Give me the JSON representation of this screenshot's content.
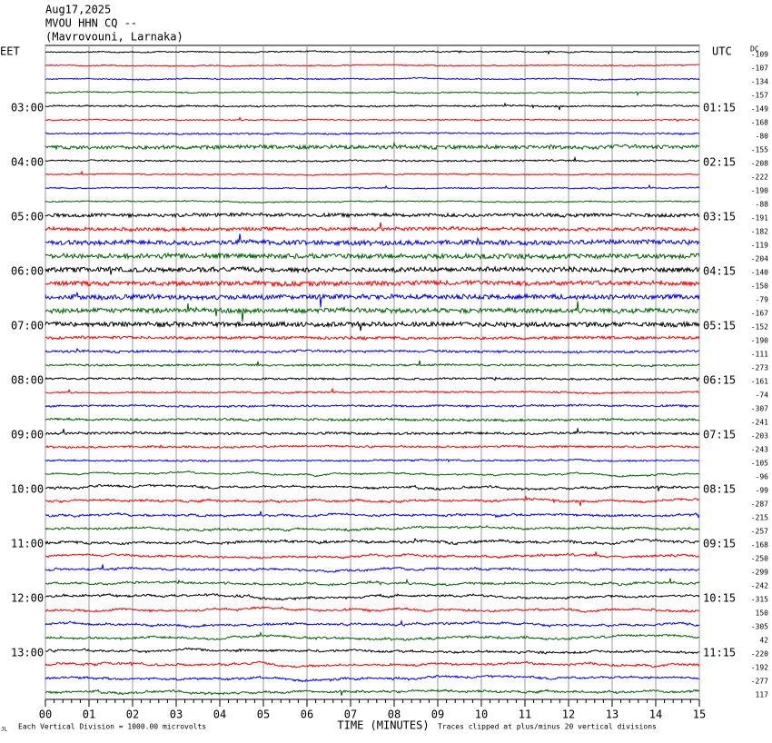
{
  "chart_data": {
    "type": "seismogram",
    "title_lines": [
      "Aug17,2025",
      "MVOU HHN CQ --",
      "(Mavrovouni, Larnaka)"
    ],
    "left_zone": "EET",
    "right_zone": "UTC",
    "dc_header": "DC",
    "x_label": "TIME (MINUTES)",
    "scale_note": "Each Vertical Division = 1000.00 microvolts",
    "clip_note": "Traces clipped at plus/minus 20 vertical divisions",
    "corner_mark": "JL",
    "xlim": [
      0,
      15
    ],
    "xticks": [
      {
        "value": 0,
        "label": "00"
      },
      {
        "value": 1,
        "label": "01"
      },
      {
        "value": 2,
        "label": "02"
      },
      {
        "value": 3,
        "label": "03"
      },
      {
        "value": 4,
        "label": "04"
      },
      {
        "value": 5,
        "label": "05"
      },
      {
        "value": 6,
        "label": "06"
      },
      {
        "value": 7,
        "label": "07"
      },
      {
        "value": 8,
        "label": "08"
      },
      {
        "value": 9,
        "label": "09"
      },
      {
        "value": 10,
        "label": "10"
      },
      {
        "value": 11,
        "label": "11"
      },
      {
        "value": 12,
        "label": "12"
      },
      {
        "value": 13,
        "label": "13"
      },
      {
        "value": 14,
        "label": "14"
      },
      {
        "value": 15,
        "label": "15"
      }
    ],
    "grid": true,
    "trace_colors": [
      "#000000",
      "#ff0000",
      "#0000ff",
      "#006400"
    ],
    "left_labels": [
      null,
      null,
      null,
      null,
      "03:00",
      null,
      null,
      null,
      "04:00",
      null,
      null,
      null,
      "05:00",
      null,
      null,
      null,
      "06:00",
      null,
      null,
      null,
      "07:00",
      null,
      null,
      null,
      "08:00",
      null,
      null,
      null,
      "09:00",
      null,
      null,
      null,
      "10:00",
      null,
      null,
      null,
      "11:00",
      null,
      null,
      null,
      "12:00",
      null,
      null,
      null,
      "13:00",
      null,
      null,
      null
    ],
    "right_labels": [
      null,
      null,
      null,
      null,
      "01:15",
      null,
      null,
      null,
      "02:15",
      null,
      null,
      null,
      "03:15",
      null,
      null,
      null,
      "04:15",
      null,
      null,
      null,
      "05:15",
      null,
      null,
      null,
      "06:15",
      null,
      null,
      null,
      "07:15",
      null,
      null,
      null,
      "08:15",
      null,
      null,
      null,
      "09:15",
      null,
      null,
      null,
      "10:15",
      null,
      null,
      null,
      "11:15",
      null,
      null,
      null
    ],
    "dc_offsets": [
      -109,
      -107,
      -134,
      -157,
      -149,
      -168,
      -80,
      -155,
      -208,
      -222,
      -190,
      -88,
      -191,
      -182,
      -119,
      -204,
      -140,
      -150,
      -79,
      -167,
      -152,
      -190,
      -111,
      -273,
      -161,
      -74,
      -307,
      -241,
      -203,
      -243,
      -105,
      -96,
      -99,
      -287,
      -215,
      -257,
      -168,
      -250,
      -299,
      -242,
      -315,
      150,
      -305,
      42,
      -220,
      -192,
      -277,
      117
    ]
  }
}
